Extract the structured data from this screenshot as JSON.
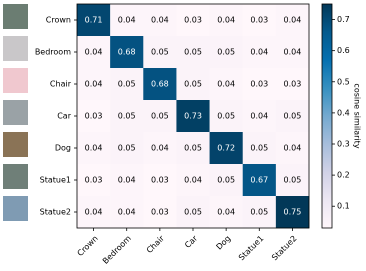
{
  "chart_data": {
    "type": "heatmap",
    "rows": [
      "Crown",
      "Bedroom",
      "Chair",
      "Car",
      "Dog",
      "Statue1",
      "Statue2"
    ],
    "columns": [
      "Crown",
      "Bedroom",
      "Chair",
      "Car",
      "Dog",
      "Statue1",
      "Statue2"
    ],
    "values": [
      [
        0.71,
        0.04,
        0.04,
        0.03,
        0.04,
        0.03,
        0.04
      ],
      [
        0.04,
        0.68,
        0.05,
        0.05,
        0.05,
        0.04,
        0.04
      ],
      [
        0.04,
        0.05,
        0.68,
        0.05,
        0.04,
        0.03,
        0.03
      ],
      [
        0.03,
        0.05,
        0.05,
        0.73,
        0.05,
        0.04,
        0.05
      ],
      [
        0.04,
        0.05,
        0.04,
        0.05,
        0.72,
        0.05,
        0.04
      ],
      [
        0.03,
        0.04,
        0.03,
        0.04,
        0.05,
        0.67,
        0.05
      ],
      [
        0.04,
        0.04,
        0.03,
        0.05,
        0.04,
        0.05,
        0.75
      ]
    ],
    "colorscale": [
      "#fff7fb",
      "#ece7f2",
      "#d0d1e6",
      "#a6bddb",
      "#74a9cf",
      "#3690c0",
      "#0570b0",
      "#045a8d",
      "#023858"
    ],
    "clim": [
      0.03,
      0.75
    ],
    "cticks": [
      0.1,
      0.2,
      0.3,
      0.4,
      0.5,
      0.6,
      0.7
    ],
    "colorbar_label": "cosine similarity"
  }
}
